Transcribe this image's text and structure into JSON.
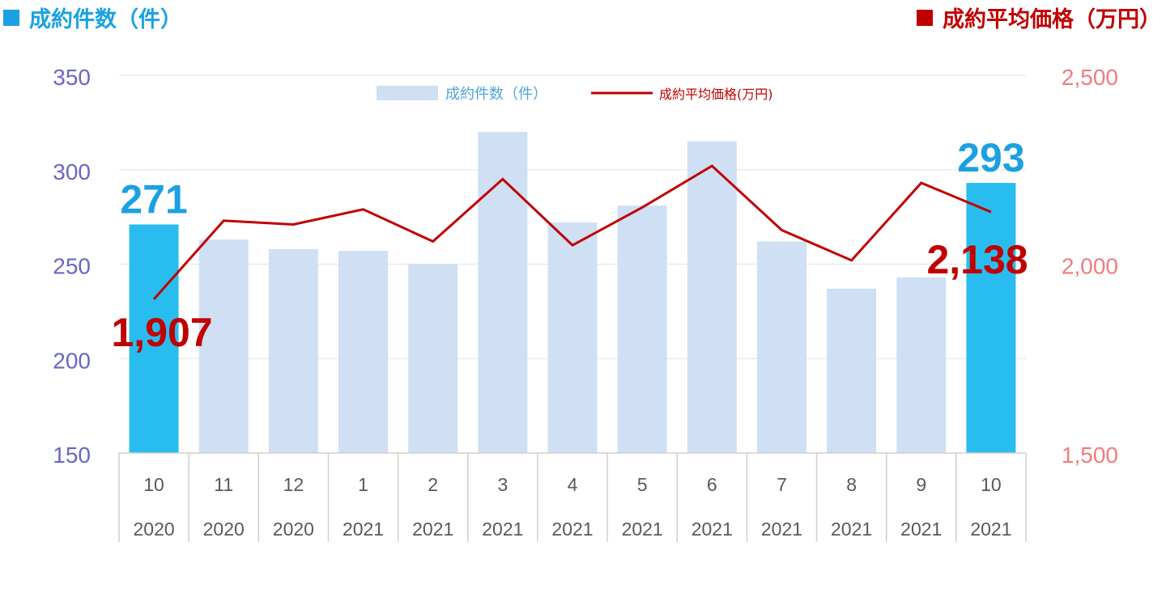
{
  "header": {
    "left_title": "成約件数（件）",
    "right_title": "成約平均価格（万円）"
  },
  "colors": {
    "bar": "#cfdff4",
    "bar_highlight": "#29bdef",
    "line": "#c00000",
    "left_axis": "#6b66c4",
    "right_axis": "#f07c7c",
    "left_title": "#1ba1e2",
    "right_title": "#c00000",
    "highlight_count_label": "#1ba1e2",
    "highlight_price_label": "#c00000"
  },
  "chart_data": {
    "type": "bar",
    "categories": [
      {
        "month": "10",
        "year": "2020"
      },
      {
        "month": "11",
        "year": "2020"
      },
      {
        "month": "12",
        "year": "2020"
      },
      {
        "month": "1",
        "year": "2021"
      },
      {
        "month": "2",
        "year": "2021"
      },
      {
        "month": "3",
        "year": "2021"
      },
      {
        "month": "4",
        "year": "2021"
      },
      {
        "month": "5",
        "year": "2021"
      },
      {
        "month": "6",
        "year": "2021"
      },
      {
        "month": "7",
        "year": "2021"
      },
      {
        "month": "8",
        "year": "2021"
      },
      {
        "month": "9",
        "year": "2021"
      },
      {
        "month": "10",
        "year": "2021"
      }
    ],
    "series": [
      {
        "name": "成約件数（件）",
        "type": "bar",
        "axis": "left",
        "values": [
          271,
          263,
          258,
          257,
          250,
          320,
          272,
          281,
          315,
          262,
          237,
          243,
          293
        ]
      },
      {
        "name": "成約平均価格(万円)",
        "type": "line",
        "axis": "right",
        "values": [
          1907,
          2115,
          2105,
          2145,
          2060,
          2225,
          2050,
          2150,
          2260,
          2090,
          2010,
          2215,
          2138
        ]
      }
    ],
    "left_axis": {
      "min": 150,
      "max": 350,
      "ticks": [
        "150",
        "200",
        "250",
        "300",
        "350"
      ]
    },
    "right_axis": {
      "min": 1500,
      "max": 2500,
      "ticks": [
        "1,500",
        "2,000",
        "2,500"
      ]
    },
    "highlight_indices": [
      0,
      12
    ],
    "data_labels": [
      {
        "index": 0,
        "series": 0,
        "text": "271"
      },
      {
        "index": 12,
        "series": 0,
        "text": "293"
      },
      {
        "index": 0,
        "series": 1,
        "text": "1,907"
      },
      {
        "index": 12,
        "series": 1,
        "text": "2,138"
      }
    ],
    "legend_placement": "top-center",
    "grid": true
  }
}
